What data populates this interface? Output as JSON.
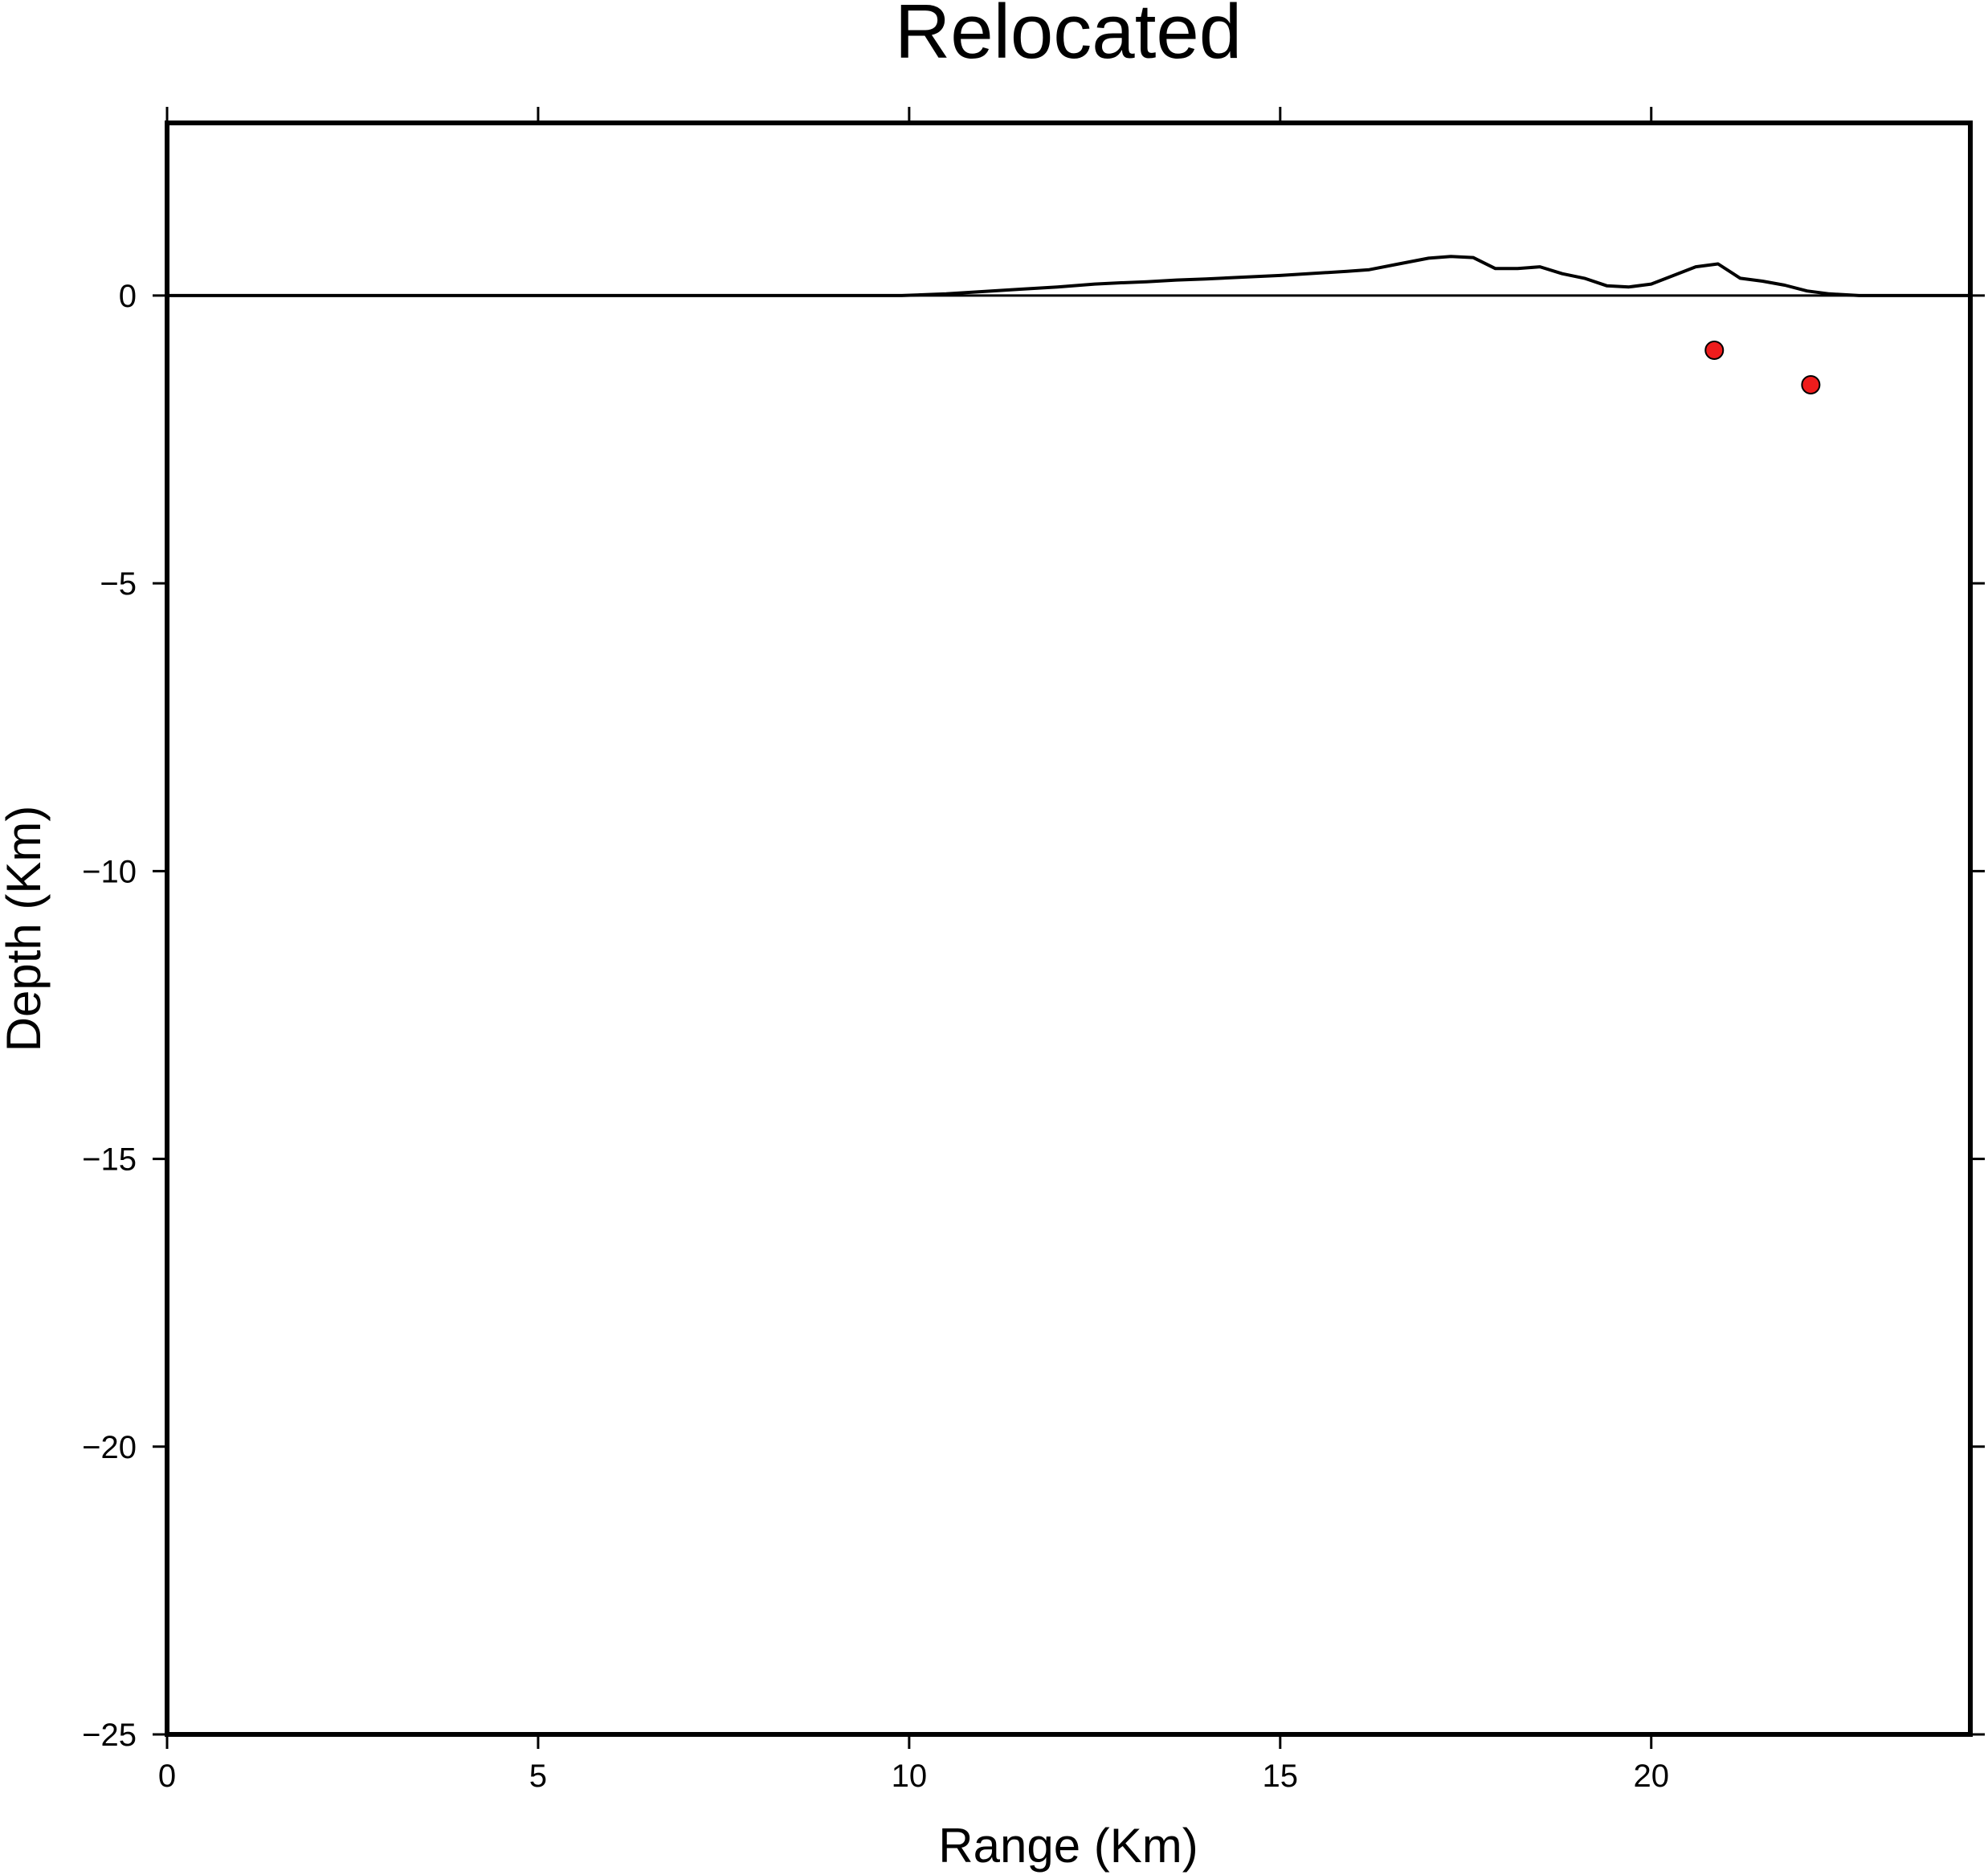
{
  "chart_data": {
    "type": "scatter",
    "title": "Relocated",
    "xlabel": "Range (Km)",
    "ylabel": "Depth (Km)",
    "xlim": [
      0,
      24.3
    ],
    "ylim": [
      -25,
      3
    ],
    "xticks": [
      0,
      5,
      10,
      15,
      20
    ],
    "xtick_labels": [
      "0",
      "5",
      "10",
      "15",
      "20"
    ],
    "yticks": [
      0,
      -5,
      -10,
      -15,
      -20,
      -25
    ],
    "ytick_labels": [
      "0",
      "−5",
      "−10",
      "−15",
      "−20",
      "−25"
    ],
    "grid": false,
    "legend": "none",
    "zero_line": 0,
    "topography": {
      "x": [
        0,
        9.9,
        10.5,
        11,
        11.5,
        12,
        12.5,
        12.8,
        13.2,
        13.6,
        14,
        14.5,
        15,
        15.5,
        15.9,
        16.2,
        16.6,
        17,
        17.3,
        17.6,
        17.9,
        18.2,
        18.5,
        18.8,
        19.1,
        19.4,
        19.7,
        20.0,
        20.3,
        20.6,
        20.9,
        21.2,
        21.5,
        21.8,
        22.1,
        22.4,
        22.8,
        24.3
      ],
      "y": [
        0,
        0,
        0.03,
        0.07,
        0.11,
        0.15,
        0.2,
        0.22,
        0.24,
        0.27,
        0.29,
        0.32,
        0.35,
        0.39,
        0.42,
        0.45,
        0.55,
        0.65,
        0.68,
        0.66,
        0.47,
        0.47,
        0.5,
        0.38,
        0.3,
        0.17,
        0.15,
        0.2,
        0.35,
        0.5,
        0.55,
        0.3,
        0.25,
        0.18,
        0.08,
        0.03,
        0.0,
        0.0
      ]
    },
    "series": [
      {
        "x": [
          20.85,
          22.15
        ],
        "y": [
          -0.95,
          -1.55
        ],
        "color": "#ee1c1c"
      }
    ]
  }
}
